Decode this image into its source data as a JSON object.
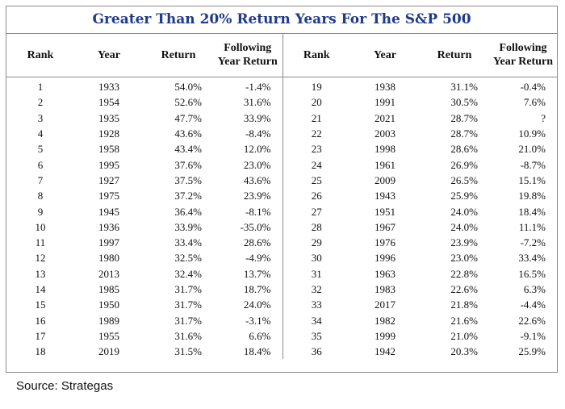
{
  "chart_data": {
    "type": "table",
    "title": "Greater Than 20% Return Years For The S&P 500",
    "columns": [
      "Rank",
      "Year",
      "Return",
      "Following Year Return",
      "Rank",
      "Year",
      "Return",
      "Following Year Return"
    ],
    "left_rows": [
      [
        "1",
        "1933",
        "54.0%",
        "-1.4%"
      ],
      [
        "2",
        "1954",
        "52.6%",
        "31.6%"
      ],
      [
        "3",
        "1935",
        "47.7%",
        "33.9%"
      ],
      [
        "4",
        "1928",
        "43.6%",
        "-8.4%"
      ],
      [
        "5",
        "1958",
        "43.4%",
        "12.0%"
      ],
      [
        "6",
        "1995",
        "37.6%",
        "23.0%"
      ],
      [
        "7",
        "1927",
        "37.5%",
        "43.6%"
      ],
      [
        "8",
        "1975",
        "37.2%",
        "23.9%"
      ],
      [
        "9",
        "1945",
        "36.4%",
        "-8.1%"
      ],
      [
        "10",
        "1936",
        "33.9%",
        "-35.0%"
      ],
      [
        "11",
        "1997",
        "33.4%",
        "28.6%"
      ],
      [
        "12",
        "1980",
        "32.5%",
        "-4.9%"
      ],
      [
        "13",
        "2013",
        "32.4%",
        "13.7%"
      ],
      [
        "14",
        "1985",
        "31.7%",
        "18.7%"
      ],
      [
        "15",
        "1950",
        "31.7%",
        "24.0%"
      ],
      [
        "16",
        "1989",
        "31.7%",
        "-3.1%"
      ],
      [
        "17",
        "1955",
        "31.6%",
        "6.6%"
      ],
      [
        "18",
        "2019",
        "31.5%",
        "18.4%"
      ]
    ],
    "right_rows": [
      [
        "19",
        "1938",
        "31.1%",
        "-0.4%"
      ],
      [
        "20",
        "1991",
        "30.5%",
        "7.6%"
      ],
      [
        "21",
        "2021",
        "28.7%",
        "?"
      ],
      [
        "22",
        "2003",
        "28.7%",
        "10.9%"
      ],
      [
        "23",
        "1998",
        "28.6%",
        "21.0%"
      ],
      [
        "24",
        "1961",
        "26.9%",
        "-8.7%"
      ],
      [
        "25",
        "2009",
        "26.5%",
        "15.1%"
      ],
      [
        "26",
        "1943",
        "25.9%",
        "19.8%"
      ],
      [
        "27",
        "1951",
        "24.0%",
        "18.4%"
      ],
      [
        "28",
        "1967",
        "24.0%",
        "11.1%"
      ],
      [
        "29",
        "1976",
        "23.9%",
        "-7.2%"
      ],
      [
        "30",
        "1996",
        "23.0%",
        "33.4%"
      ],
      [
        "31",
        "1963",
        "22.8%",
        "16.5%"
      ],
      [
        "32",
        "1983",
        "22.6%",
        "6.3%"
      ],
      [
        "33",
        "2017",
        "21.8%",
        "-4.4%"
      ],
      [
        "34",
        "1982",
        "21.6%",
        "22.6%"
      ],
      [
        "35",
        "1999",
        "21.0%",
        "-9.1%"
      ],
      [
        "36",
        "1942",
        "20.3%",
        "25.9%"
      ]
    ]
  },
  "header": {
    "rank": "Rank",
    "year": "Year",
    "return": "Return",
    "following_line1": "Following",
    "following_line2": "Year Return"
  },
  "source": "Source: Strategas",
  "colors": {
    "title": "#1f3a8a",
    "border": "#8a8a8a"
  }
}
